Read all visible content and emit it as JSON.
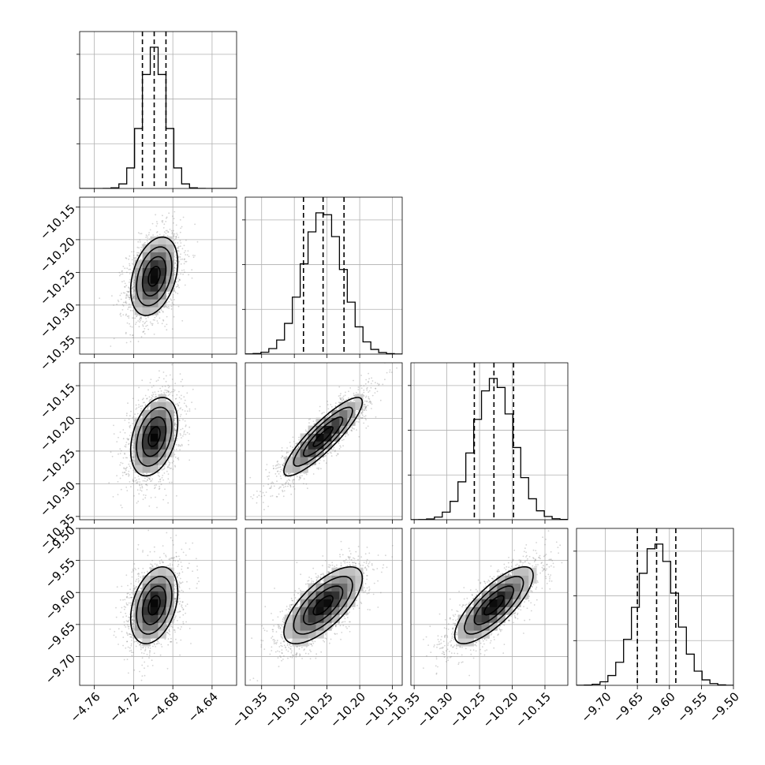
{
  "chart_data": {
    "type": "corner",
    "parameters": [
      {
        "range": [
          -4.775,
          -4.615
        ],
        "ticks": [
          -4.76,
          -4.72,
          -4.68,
          -4.64
        ],
        "tick_labels": [
          "−4.76",
          "−4.72",
          "−4.68",
          "−4.64"
        ],
        "quantiles": [
          -4.711,
          -4.699,
          -4.687
        ],
        "mean": -4.699,
        "sd": 0.012
      },
      {
        "range": [
          -10.375,
          -10.135
        ],
        "ticks": [
          -10.35,
          -10.3,
          -10.25,
          -10.2,
          -10.15
        ],
        "tick_labels": [
          "−10.35",
          "−10.30",
          "−10.25",
          "−10.20",
          "−10.15"
        ],
        "quantiles": [
          -10.286,
          -10.256,
          -10.224
        ],
        "mean": -10.256,
        "sd": 0.03
      },
      {
        "range": [
          -10.355,
          -10.115
        ],
        "ticks": [
          -10.35,
          -10.3,
          -10.25,
          -10.2,
          -10.15
        ],
        "tick_labels": [
          "−10.35",
          "−10.30",
          "−10.25",
          "−10.20",
          "−10.15"
        ],
        "quantiles": [
          -10.258,
          -10.228,
          -10.198
        ],
        "mean": -10.228,
        "sd": 0.03
      },
      {
        "range": [
          -9.745,
          -9.5
        ],
        "ticks": [
          -9.7,
          -9.65,
          -9.6,
          -9.55,
          -9.5
        ],
        "tick_labels": [
          "−9.70",
          "−9.65",
          "−9.60",
          "−9.55",
          "−9.50"
        ],
        "quantiles": [
          -9.65,
          -9.62,
          -9.59
        ],
        "mean": -9.62,
        "sd": 0.03
      }
    ],
    "correlations": [
      [
        1,
        0.35,
        0.35,
        0.35
      ],
      [
        0.35,
        1,
        0.88,
        0.7
      ],
      [
        0.35,
        0.88,
        1,
        0.78
      ],
      [
        0.35,
        0.7,
        0.78,
        1
      ]
    ],
    "histogram_bins": 20,
    "contour_levels_sigma": [
      0.5,
      1.0,
      1.5,
      2.0
    ],
    "grid": true,
    "line_color": "#000000",
    "point_color": "#808080"
  }
}
